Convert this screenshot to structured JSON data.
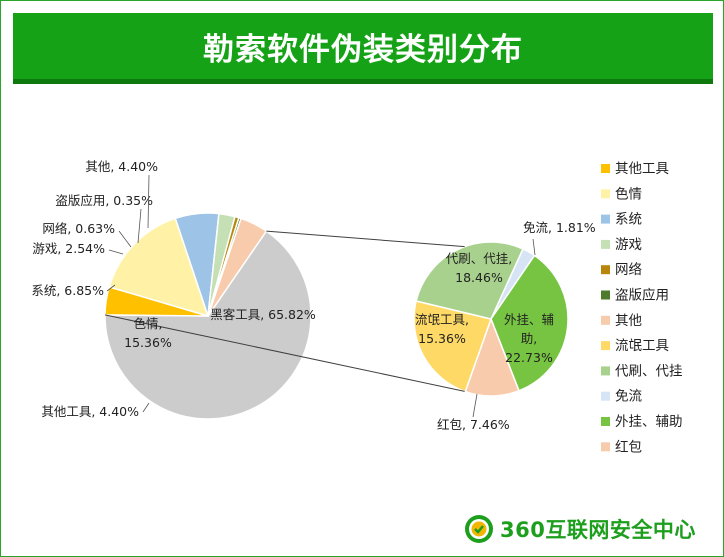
{
  "title": "勒索软件伪装类别分布",
  "logo": {
    "text": "360互联网安全中心"
  },
  "colors": {
    "accent": "#16a216",
    "其他工具": "#FFC000",
    "色情": "#FFF2A6",
    "系统": "#9DC3E6",
    "游戏": "#C5E0B4",
    "网络": "#B8860B",
    "盗版应用": "#4E7A2E",
    "其他": "#F8CBAD",
    "流氓工具": "#FFD966",
    "代刷、代挂": "#A9D18E",
    "免流": "#D6E4F5",
    "外挂、辅助": "#76C442",
    "红包": "#F8CBAD"
  },
  "chart_data": [
    {
      "type": "pie",
      "title": "",
      "slices": [
        {
          "name": "黑客工具",
          "value": 65.82,
          "label": "黑客工具, 65.82%"
        },
        {
          "name": "其他工具",
          "value": 4.4,
          "label": "其他工具, 4.40%"
        },
        {
          "name": "色情",
          "value": 15.36,
          "label_lines": [
            "色情,",
            "15.36%"
          ]
        },
        {
          "name": "系统",
          "value": 6.85,
          "label": "系统, 6.85%"
        },
        {
          "name": "游戏",
          "value": 2.54,
          "label": "游戏, 2.54%"
        },
        {
          "name": "网络",
          "value": 0.63,
          "label": "网络, 0.63%"
        },
        {
          "name": "盗版应用",
          "value": 0.35,
          "label": "盗版应用, 0.35%"
        },
        {
          "name": "其他",
          "value": 4.4,
          "label": "其他, 4.40%"
        }
      ]
    },
    {
      "type": "pie",
      "title": "",
      "slices": [
        {
          "name": "免流",
          "value": 1.81,
          "label": "免流, 1.81%"
        },
        {
          "name": "外挂、辅助",
          "value": 22.73,
          "label_lines": [
            "外挂、辅",
            "助,",
            "22.73%"
          ]
        },
        {
          "name": "红包",
          "value": 7.46,
          "label": "红包, 7.46%"
        },
        {
          "name": "流氓工具",
          "value": 15.36,
          "label_lines": [
            "流氓工具,",
            "15.36%"
          ]
        },
        {
          "name": "代刷、代挂",
          "value": 18.46,
          "label_lines": [
            "代刷、代挂,",
            "18.46%"
          ]
        }
      ]
    }
  ],
  "legend": [
    {
      "name": "其他工具"
    },
    {
      "name": "色情"
    },
    {
      "name": "系统"
    },
    {
      "name": "游戏"
    },
    {
      "name": "网络"
    },
    {
      "name": "盗版应用"
    },
    {
      "name": "其他"
    },
    {
      "name": "流氓工具"
    },
    {
      "name": "代刷、代挂"
    },
    {
      "name": "免流"
    },
    {
      "name": "外挂、辅助"
    },
    {
      "name": "红包"
    }
  ]
}
